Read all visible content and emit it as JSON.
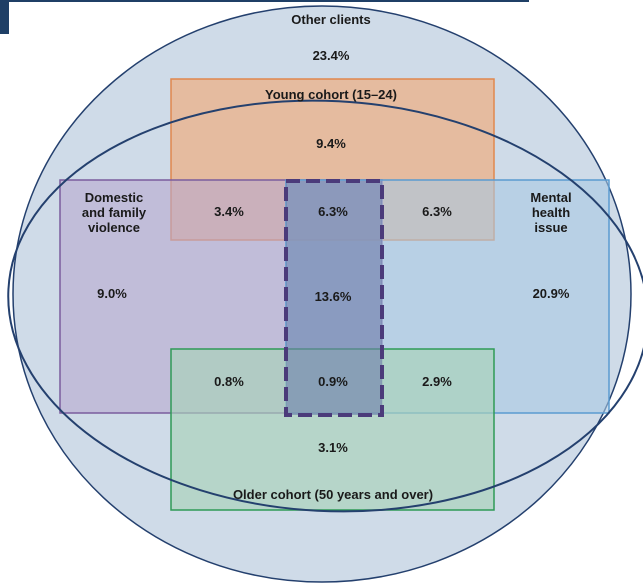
{
  "colors": {
    "outer_ellipse_fill": "#cfdbe8",
    "outer_ellipse_stroke": "#24406e",
    "young_fill": "#e9b592",
    "young_stroke": "#e0884e",
    "dfv_fill": "#b7a8cf",
    "dfv_stroke": "#7a5d9e",
    "mental_fill": "#a9c8e2",
    "mental_stroke": "#5a9bd0",
    "older_fill": "#a9d2b9",
    "older_stroke": "#2f9a56",
    "center_fill": "#6f80ab",
    "center_stroke": "#4b3b7a",
    "corner_accent": "#1f3f66"
  },
  "sets": {
    "other_clients": {
      "label": "Other clients",
      "value": "23.4%"
    },
    "young_cohort": {
      "label": "Young cohort (15–24)",
      "value": "9.4%"
    },
    "domestic_family_violence": {
      "label": "Domestic\nand family\nviolence",
      "value": "9.0%"
    },
    "mental_health": {
      "label": "Mental\nhealth\nissue",
      "value": "20.9%"
    },
    "older_cohort": {
      "label": "Older cohort (50 years and over)",
      "value": "3.1%"
    }
  },
  "overlaps": {
    "young_dfv": "3.4%",
    "young_center": "6.3%",
    "young_mental": "6.3%",
    "center": "13.6%",
    "older_dfv": "0.8%",
    "older_center": "0.9%",
    "older_mental": "2.9%"
  }
}
